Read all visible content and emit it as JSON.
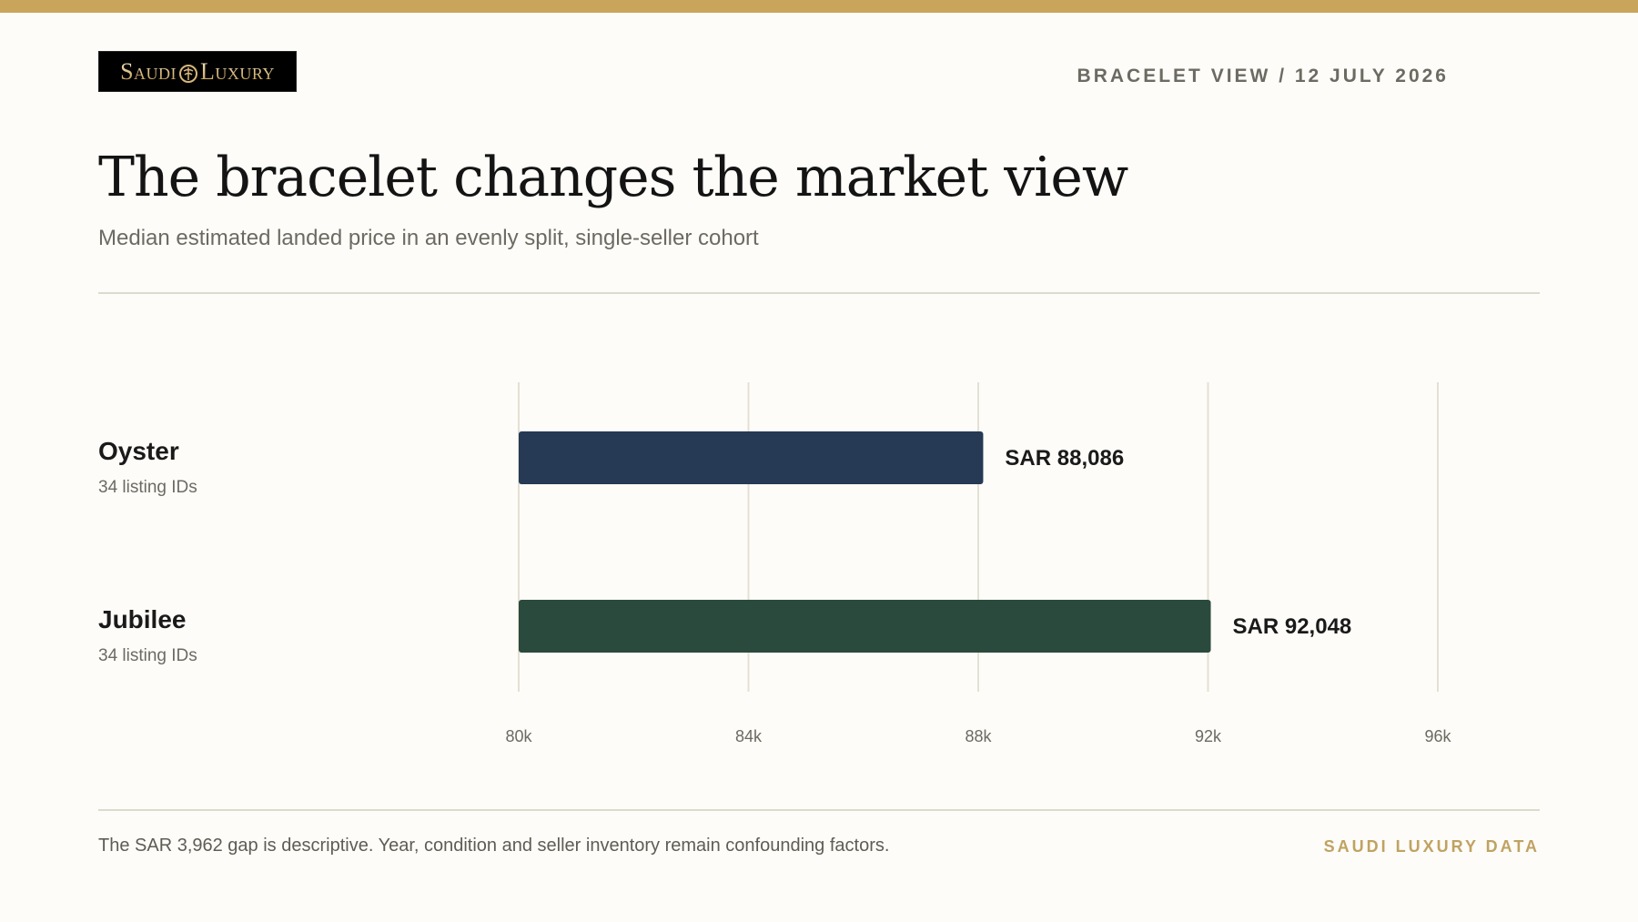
{
  "header": {
    "logo_text": "Saudi Luxury",
    "kicker": "BRACELET VIEW / 12 JULY 2026",
    "title": "The bracelet changes the market view",
    "subtitle": "Median estimated landed price in an evenly split, single-seller cohort"
  },
  "rows": [
    {
      "label": "Oyster",
      "sub": "34 listing IDs"
    },
    {
      "label": "Jubilee",
      "sub": "34 listing IDs"
    }
  ],
  "chart_data": {
    "type": "bar",
    "orientation": "horizontal",
    "categories": [
      "Oyster",
      "Jubilee"
    ],
    "values": [
      88086,
      92048
    ],
    "value_labels": [
      "SAR 88,086",
      "SAR 92,048"
    ],
    "colors": [
      "#263955",
      "#2b4a3e"
    ],
    "xlim": [
      80000,
      96000
    ],
    "ticks": [
      80000,
      84000,
      88000,
      92000,
      96000
    ],
    "tick_labels": [
      "80k",
      "84k",
      "88k",
      "92k",
      "96k"
    ],
    "grid": "vertical"
  },
  "footer": {
    "note": "The SAR 3,962 gap is descriptive. Year, condition and seller inventory remain confounding factors.",
    "brand": "SAUDI LUXURY DATA"
  },
  "colors": {
    "accent": "#c9a55c",
    "background": "#fdfcf8"
  }
}
